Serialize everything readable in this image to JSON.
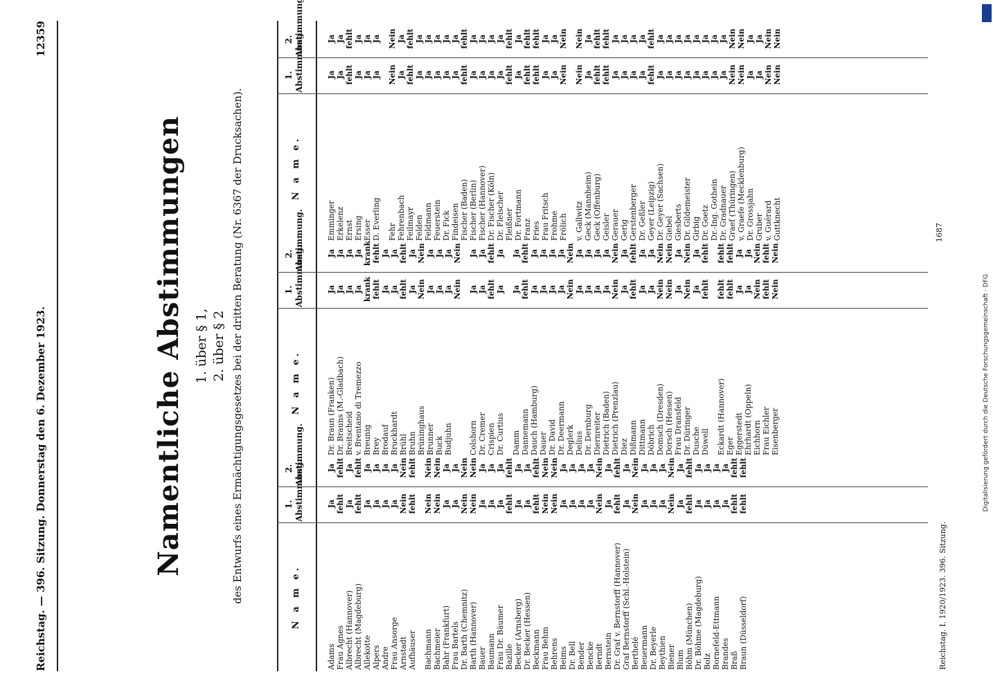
{
  "header": {
    "left": "Reichstag. — 396. Sitzung.  Donnerstag den 6. Dezember 1923.",
    "page": "12359"
  },
  "title": "Namentliche Abstimmungen",
  "sub1": "1. über § 1,",
  "sub2": "2. über § 2",
  "intro": "des Entwurfs eines Ermächtigungsgesetzes bei der dritten Beratung (Nr. 6367 der Drucksachen).",
  "table_header": {
    "name": "N a m e.",
    "col1": "1.",
    "col2": "2.",
    "col_sub": "Abstimmung."
  },
  "footer": {
    "left": "Reichstag. I. 1920/1923.  396. Sitzung.",
    "right": "1687"
  },
  "watermark": "Digitalisierung gefördert durch die Deutsche Forschungsgemeinschaft · DFG",
  "columns": [
    {
      "groups": [
        [
          [
            "Adams",
            "Ja",
            "Ja"
          ],
          [
            "Frau Agnes",
            "fehlt",
            "fehlt"
          ],
          [
            "Albrecht (Hannover)",
            "Ja",
            "Ja"
          ],
          [
            "Albrecht (Magdeburg)",
            "fehlt",
            "fehlt"
          ],
          [
            "Allekotte",
            "Ja",
            "Ja"
          ],
          [
            "Alpers",
            "Ja",
            "Ja"
          ],
          [
            "Andre",
            "Ja",
            "Ja"
          ],
          [
            "Frau Ansorge",
            "Ja",
            "Ja"
          ],
          [
            "Arnstadt",
            "Nein",
            "Nein"
          ],
          [
            "Aufhäuser",
            "fehlt",
            "fehlt"
          ]
        ],
        [
          [
            "Bachmann",
            "Nein",
            "Nein"
          ],
          [
            "Bachmeier",
            "Nein",
            "Nein"
          ],
          [
            "Bahr (Frankfurt)",
            "Ja",
            "Ja"
          ],
          [
            "Frau Bartels",
            "Ja",
            "Ja"
          ],
          [
            "Dr. Barth (Chemnitz)",
            "Nein",
            "Nein"
          ],
          [
            "Barth (Hannover)",
            "Nein",
            "Nein"
          ],
          [
            "Bauer",
            "Ja",
            "Ja"
          ],
          [
            "Baumann",
            "Ja",
            "Ja"
          ],
          [
            "Frau Dr. Bäumer",
            "Ja",
            "Ja"
          ],
          [
            "Bazille",
            "fehlt",
            "fehlt"
          ],
          [
            "Becker (Arnsberg)",
            "Ja",
            "Ja"
          ],
          [
            "Dr. Becker (Hessen)",
            "Ja",
            "Ja"
          ],
          [
            "Beckmann",
            "fehlt",
            "fehlt"
          ],
          [
            "Frau Behm",
            "Nein",
            "Nein"
          ],
          [
            "Behrens",
            "Nein",
            "Nein"
          ],
          [
            "Beims",
            "Ja",
            "Ja"
          ],
          [
            "Dr. Bell",
            "Ja",
            "Ja"
          ],
          [
            "Bender",
            "Ja",
            "Ja"
          ],
          [
            "Bencke",
            "Ja",
            "Ja"
          ],
          [
            "Berndt",
            "Nein",
            "Nein"
          ],
          [
            "Bernstein",
            "Ja",
            "Ja"
          ],
          [
            "Dr. Graf v. Bernstorff (Hannover)",
            "fehlt",
            "fehlt"
          ],
          [
            "Graf Bernstorff (Schl.-Holstein)",
            "Ja",
            "Ja"
          ],
          [
            "Berthelé",
            "Nein",
            "Nein"
          ],
          [
            "Beuermann",
            "Ja",
            "Ja"
          ],
          [
            "Dr. Beyerle",
            "Ja",
            "Ja"
          ],
          [
            "Beythien",
            "Ja",
            "Ja"
          ],
          [
            "Biener",
            "Nein",
            "Nein"
          ],
          [
            "Blum",
            "Ja",
            "Ja"
          ],
          [
            "Böhm (München)",
            "fehlt",
            "fehlt"
          ],
          [
            "Dr. Böhme (Magdeburg)",
            "Ja",
            "Ja"
          ],
          [
            "Bolz",
            "Ja",
            "Ja"
          ],
          [
            "Bornefeld-Ettmann",
            "Ja",
            "Ja"
          ],
          [
            "Brandes",
            "Ja",
            "Ja"
          ],
          [
            "Braß",
            "fehlt",
            "fehlt"
          ],
          [
            "Braun (Düsseldorf)",
            "fehlt",
            "fehlt"
          ]
        ]
      ]
    },
    {
      "groups": [
        [
          [
            "Dr. Braun (Franken)",
            "Ja",
            "Ja"
          ],
          [
            "Dr. Brauns (M.-Gladbach)",
            "Ja",
            "Ja"
          ],
          [
            "Breitscheid",
            "Ja",
            "Ja"
          ],
          [
            "v. Brentano di Tremezzo",
            "Ja",
            "Ja"
          ],
          [
            "Breunig",
            "krank",
            "krank"
          ],
          [
            "Brey",
            "fehlt",
            "fehlt"
          ],
          [
            "Brodauf",
            "Ja",
            "Ja"
          ],
          [
            "Bruckhardt",
            "Ja",
            "Ja"
          ],
          [
            "Brühl",
            "fehlt",
            "fehlt"
          ],
          [
            "Bruhn",
            "Ja",
            "Ja"
          ],
          [
            "Brüninghaus",
            "Nein",
            "Nein"
          ],
          [
            "Brunner",
            "Ja",
            "Ja"
          ],
          [
            "Buck",
            "Ja",
            "Ja"
          ],
          [
            "Budjuhn",
            "Ja",
            "Ja"
          ],
          [
            "",
            "Nein",
            "Nein"
          ]
        ],
        [
          [
            "Colshorn",
            "Ja",
            "Ja"
          ],
          [
            "Dr. Cremer",
            "Ja",
            "Ja"
          ],
          [
            "Crispien",
            "fehlt",
            "fehlt"
          ],
          [
            "Dr. Curtius",
            "Ja",
            "Ja"
          ]
        ],
        [
          [
            "Damm",
            "Ja",
            "Ja"
          ],
          [
            "Dannemann",
            "fehlt",
            "fehlt"
          ],
          [
            "Dauch (Hamburg)",
            "Ja",
            "Ja"
          ],
          [
            "Dauer",
            "Ja",
            "Ja"
          ],
          [
            "Dr. David",
            "Ja",
            "Ja"
          ],
          [
            "Dr. Deermann",
            "Ja",
            "Ja"
          ],
          [
            "Deglerk",
            "Nein",
            "Nein"
          ],
          [
            "Delius",
            "Ja",
            "Ja"
          ],
          [
            "Dr. Dernburg",
            "Ja",
            "Ja"
          ],
          [
            "Diernreiter",
            "Ja",
            "Ja"
          ],
          [
            "Dietrich (Baden)",
            "Ja",
            "Ja"
          ],
          [
            "Dietrich (Prenzlau)",
            "Nein",
            "Nein"
          ],
          [
            "Diez",
            "Ja",
            "Ja"
          ],
          [
            "Dißmann",
            "fehlt",
            "fehlt"
          ],
          [
            "Dittmann",
            "Ja",
            "Ja"
          ],
          [
            "Döbrich",
            "Ja",
            "Ja"
          ],
          [
            "Domsch (Dresden)",
            "Nein",
            "Nein"
          ],
          [
            "Dorsch (Hessen)",
            "Nein",
            "Nein"
          ],
          [
            "Frau Dransfeld",
            "Ja",
            "Ja"
          ],
          [
            "Dr. Düringer",
            "Nein",
            "Nein"
          ],
          [
            "Dusche",
            "Ja",
            "Ja"
          ],
          [
            "Düwell",
            "fehlt",
            "fehlt"
          ]
        ],
        [
          [
            "Eckardt (Hannover)",
            "fehlt",
            "fehlt"
          ],
          [
            "Eger",
            "fehlt",
            "fehlt"
          ],
          [
            "Eggerstedt",
            "Ja",
            "Ja"
          ],
          [
            "Ehrhardt (Oppeln)",
            "Ja",
            "Ja"
          ],
          [
            "Eichhorn",
            "Nein",
            "Nein"
          ],
          [
            "Frau Eichler",
            "fehlt",
            "fehlt"
          ],
          [
            "Eisenberger",
            "Nein",
            "Nein"
          ]
        ]
      ]
    },
    {
      "groups": [
        [
          [
            "Emminger",
            "Ja",
            "Ja"
          ],
          [
            "Erkelenz",
            "Ja",
            "Ja"
          ],
          [
            "Ernst",
            "fehlt",
            "fehlt"
          ],
          [
            "Ersing",
            "Ja",
            "Ja"
          ],
          [
            "Esser",
            "Ja",
            "Ja"
          ],
          [
            "D. Everling",
            "Ja",
            "Ja"
          ]
        ],
        [
          [
            "Fehr",
            "Nein",
            "Nein"
          ],
          [
            "Fehrenbach",
            "Ja",
            "Ja"
          ],
          [
            "Feilmayr",
            "fehlt",
            "fehlt"
          ],
          [
            "Felden",
            "Ja",
            "Ja"
          ],
          [
            "Feldmann",
            "Ja",
            "Ja"
          ],
          [
            "Feuerstein",
            "Ja",
            "Ja"
          ],
          [
            "Dr. Fick",
            "Ja",
            "Ja"
          ],
          [
            "Findeisen",
            "Ja",
            "Ja"
          ],
          [
            "Fischer (Baden)",
            "fehlt",
            "fehlt"
          ],
          [
            "Fischer (Berlin)",
            "Ja",
            "Ja"
          ],
          [
            "Fischer (Hannover)",
            "Ja",
            "Ja"
          ],
          [
            "Dr. Fischer (Köln)",
            "Ja",
            "Ja"
          ],
          [
            "Dr. Fleischer",
            "Ja",
            "Ja"
          ],
          [
            "Fleißner",
            "fehlt",
            "fehlt"
          ],
          [
            "Dr. Fortmann",
            "Ja",
            "Ja"
          ],
          [
            "Franz",
            "fehlt",
            "fehlt"
          ],
          [
            "Fries",
            "fehlt",
            "fehlt"
          ],
          [
            "Frau Fritsch",
            "Ja",
            "Ja"
          ],
          [
            "Frohme",
            "Ja",
            "Ja"
          ],
          [
            "Frölich",
            "Nein",
            "Nein"
          ]
        ],
        [
          [
            "v. Gallwitz",
            "Nein",
            "Nein"
          ],
          [
            "Geck (Mannheim)",
            "Ja",
            "Ja"
          ],
          [
            "Geck (Offenburg)",
            "fehlt",
            "fehlt"
          ],
          [
            "Geisler",
            "fehlt",
            "fehlt"
          ],
          [
            "Gerauer",
            "Ja",
            "Ja"
          ],
          [
            "Gerig",
            "Ja",
            "Ja"
          ],
          [
            "Gerstenberger",
            "Ja",
            "Ja"
          ],
          [
            "Dr. Geßler",
            "Ja",
            "Ja"
          ],
          [
            "Geyer (Leipzig)",
            "fehlt",
            "fehlt"
          ],
          [
            "Dr. Geyer (Sachsen)",
            "Ja",
            "Ja"
          ],
          [
            "Giebel",
            "Ja",
            "Ja"
          ],
          [
            "Giesberts",
            "Ja",
            "Ja"
          ],
          [
            "Dr. Gildemeister",
            "Ja",
            "Ja"
          ],
          [
            "Girbig",
            "Ja",
            "Ja"
          ],
          [
            "Dr. Goetz",
            "Ja",
            "Ja"
          ],
          [
            "Dr.-Ing. Gothein",
            "Ja",
            "Ja"
          ],
          [
            "Dr. Gradnauer",
            "Ja",
            "Ja"
          ],
          [
            "Graef (Thüringen)",
            "Nein",
            "Nein"
          ],
          [
            "v. Graefe (Mecklenburg)",
            "Nein",
            "Nein"
          ],
          [
            "Dr. Grossjahn",
            "Ja",
            "Ja"
          ],
          [
            "Gruber",
            "Ja",
            "Ja"
          ],
          [
            "v. Guérard",
            "Nein",
            "Nein"
          ],
          [
            "Guttknecht",
            "Nein",
            "Nein"
          ]
        ]
      ]
    }
  ]
}
